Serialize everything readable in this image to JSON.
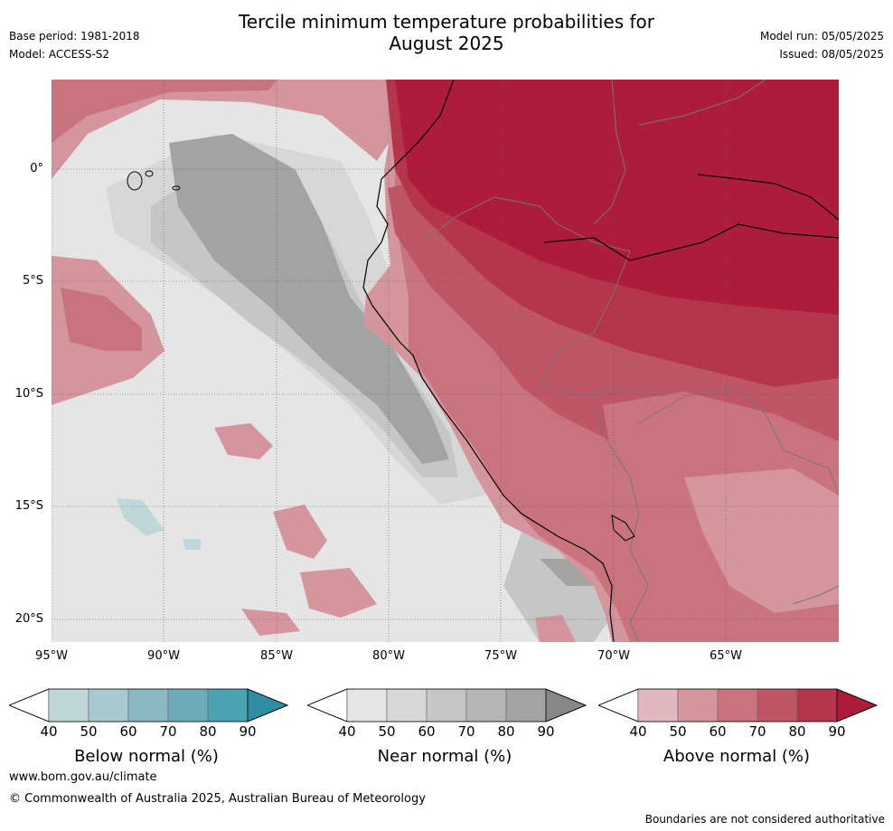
{
  "title_line1": "Tercile minimum temperature probabilities for",
  "title_line2": "August 2025",
  "meta_left": [
    "Base period: 1981-2018",
    "Model: ACCESS-S2"
  ],
  "meta_right": [
    "Model run: 05/05/2025",
    "Issued: 08/05/2025"
  ],
  "lat_labels": [
    "0°",
    "5°S",
    "10°S",
    "15°S",
    "20°S"
  ],
  "lon_labels": [
    "95°W",
    "90°W",
    "85°W",
    "80°W",
    "75°W",
    "70°W",
    "65°W"
  ],
  "colorbars": [
    {
      "title": "Below normal (%)",
      "ticks": [
        "40",
        "50",
        "60",
        "70",
        "80",
        "90"
      ],
      "colors": [
        "#ffffff",
        "#bfd6db",
        "#a7c9cf",
        "#8bb9c3",
        "#6eabb8",
        "#4ba2b1",
        "#2f8da2"
      ]
    },
    {
      "title": "Near normal (%)",
      "ticks": [
        "40",
        "50",
        "60",
        "70",
        "80",
        "90"
      ],
      "colors": [
        "#ffffff",
        "#e5e5e5",
        "#d7d7d7",
        "#c6c6c6",
        "#b5b5b5",
        "#a3a3a3",
        "#888888"
      ]
    },
    {
      "title": "Above normal (%)",
      "ticks": [
        "40",
        "50",
        "60",
        "70",
        "80",
        "90"
      ],
      "colors": [
        "#ffffff",
        "#e0b8bd",
        "#d4959d",
        "#c9737e",
        "#bf5665",
        "#b5354a",
        "#ad1c3a"
      ]
    }
  ],
  "footer": {
    "url": "www.bom.gov.au/climate",
    "copyright": "© Commonwealth of Australia 2025, Australian Bureau of Meteorology",
    "disclaimer": "Boundaries are not considered authoritative"
  }
}
